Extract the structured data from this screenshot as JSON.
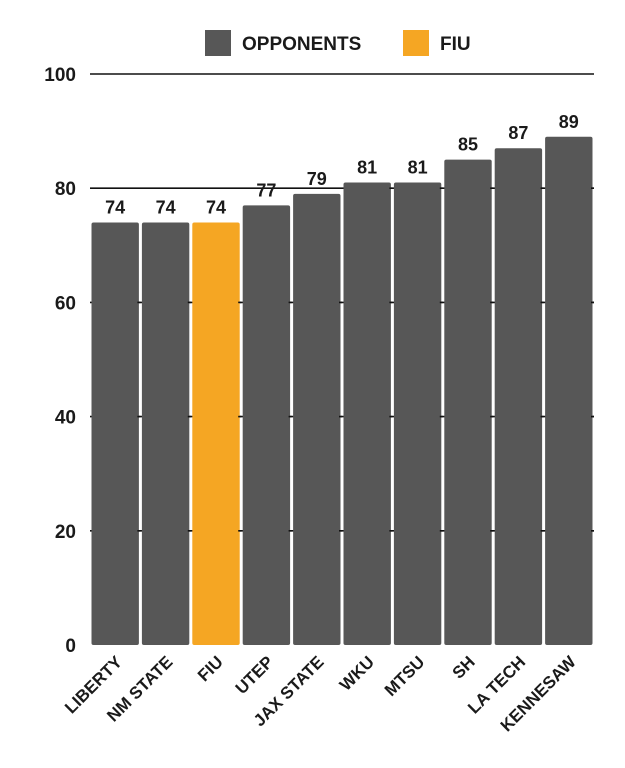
{
  "colors": {
    "opponents": "#575757",
    "fiu": "#f5a623",
    "gridline": "#111111",
    "text": "#1a1a1a"
  },
  "legend": [
    {
      "label": "OPPONENTS",
      "color": "#575757"
    },
    {
      "label": "FIU",
      "color": "#f5a623"
    }
  ],
  "chart_data": {
    "type": "bar",
    "categories": [
      "LIBERTY",
      "NM STATE",
      "FIU",
      "UTEP",
      "JAX STATE",
      "WKU",
      "MTSU",
      "SH",
      "LA TECH",
      "KENNESAW"
    ],
    "values": [
      74,
      74,
      74,
      77,
      79,
      81,
      81,
      85,
      87,
      89
    ],
    "groups": [
      "OPPONENTS",
      "OPPONENTS",
      "FIU",
      "OPPONENTS",
      "OPPONENTS",
      "OPPONENTS",
      "OPPONENTS",
      "OPPONENTS",
      "OPPONENTS",
      "OPPONENTS"
    ],
    "ylim": [
      0,
      100
    ],
    "yticks": [
      0,
      20,
      40,
      60,
      80,
      100
    ],
    "grid": true,
    "legend_position": "top-center",
    "data_labels": true,
    "title": "",
    "xlabel": "",
    "ylabel": ""
  }
}
